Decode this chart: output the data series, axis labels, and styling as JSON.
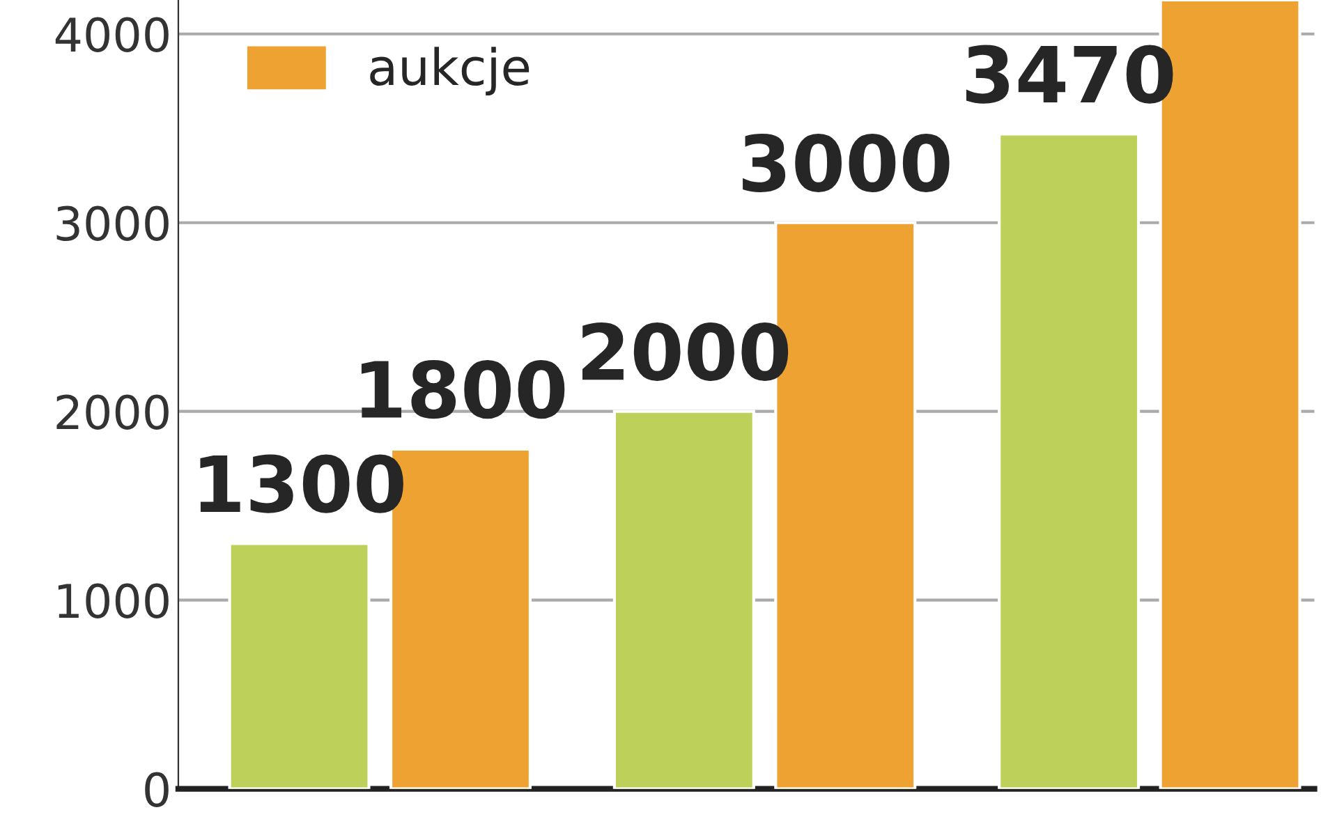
{
  "chart_data": {
    "type": "bar",
    "categories": [
      null,
      null,
      null
    ],
    "series": [
      {
        "color": "#bdd059",
        "values": [
          1300,
          2000,
          3470
        ],
        "value_labels": [
          "1300",
          "2000",
          "3470"
        ]
      },
      {
        "name": "aukcje",
        "color": "#eda232",
        "values": [
          1800,
          3000,
          4180
        ],
        "value_labels": [
          "1800",
          "3000",
          null
        ]
      }
    ],
    "ylim": [
      0,
      4180
    ],
    "yticks": [
      0,
      1000,
      2000,
      3000,
      4000
    ],
    "grid": "y",
    "legend": "top left"
  }
}
